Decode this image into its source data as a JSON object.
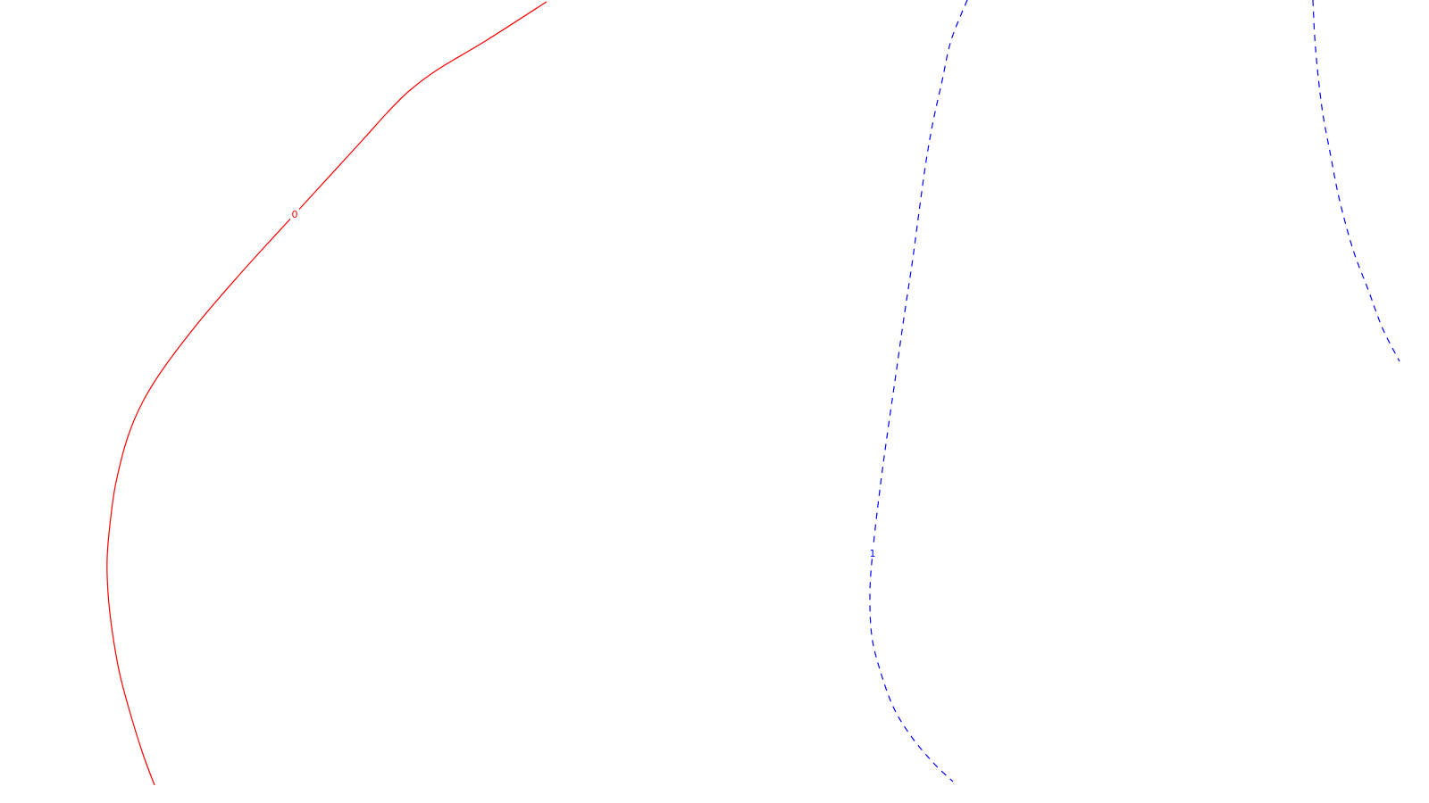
{
  "chart_data": {
    "type": "contour",
    "title": "",
    "xlabel": "",
    "ylabel": "",
    "grid": false,
    "legend": "none",
    "series": [
      {
        "level": "0",
        "color": "#ff0000",
        "line_style": "solid",
        "label_text": "0",
        "label_index": 6,
        "points": [
          [
            612,
            2
          ],
          [
            545,
            45
          ],
          [
            490,
            78
          ],
          [
            458,
            102
          ],
          [
            432,
            128
          ],
          [
            405,
            158
          ],
          [
            330,
            240
          ],
          [
            295,
            278
          ],
          [
            268,
            308
          ],
          [
            225,
            358
          ],
          [
            185,
            410
          ],
          [
            160,
            450
          ],
          [
            143,
            490
          ],
          [
            130,
            540
          ],
          [
            124,
            580
          ],
          [
            120,
            625
          ],
          [
            121,
            665
          ],
          [
            126,
            710
          ],
          [
            134,
            755
          ],
          [
            146,
            800
          ],
          [
            160,
            845
          ],
          [
            173,
            880
          ]
        ]
      },
      {
        "level": "1",
        "color": "#0000ff",
        "line_style": "dashed",
        "label_text": "1",
        "label_index": 11,
        "points": [
          [
            1083,
            0
          ],
          [
            1065,
            45
          ],
          [
            1055,
            90
          ],
          [
            1045,
            135
          ],
          [
            1037,
            180
          ],
          [
            1030,
            230
          ],
          [
            1022,
            290
          ],
          [
            1013,
            350
          ],
          [
            1003,
            420
          ],
          [
            993,
            490
          ],
          [
            985,
            550
          ],
          [
            977,
            620
          ],
          [
            974,
            665
          ],
          [
            976,
            712
          ],
          [
            985,
            750
          ],
          [
            1000,
            792
          ],
          [
            1020,
            825
          ],
          [
            1045,
            855
          ],
          [
            1067,
            876
          ]
        ]
      },
      {
        "level": "",
        "color": "#0000ff",
        "line_style": "dashed",
        "label_text": "",
        "label_index": -1,
        "points": [
          [
            1470,
            0
          ],
          [
            1473,
            55
          ],
          [
            1480,
            120
          ],
          [
            1490,
            175
          ],
          [
            1500,
            225
          ],
          [
            1515,
            280
          ],
          [
            1532,
            325
          ],
          [
            1548,
            368
          ],
          [
            1567,
            405
          ]
        ]
      }
    ]
  }
}
